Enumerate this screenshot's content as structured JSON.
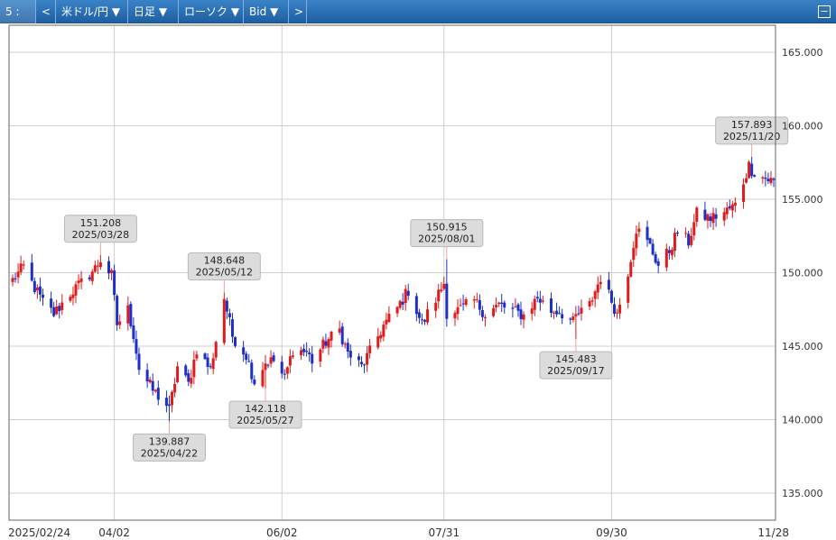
{
  "toolbar": {
    "slot": "5 :",
    "prev": "<",
    "pair": "米ドル/円 ▼",
    "timeframe": "日足 ▼",
    "chart_type": "ローソク ▼",
    "price_side": "Bid ▼",
    "next": ">",
    "collapse": "−"
  },
  "colors": {
    "up": "#e01b1b",
    "down": "#1d2fc8",
    "grid": "#d0d0d0",
    "frame": "#666666"
  },
  "chart_data": {
    "type": "candlestick",
    "title": "",
    "xlabel": "",
    "ylabel": "",
    "ylim": [
      132.5,
      167
    ],
    "yticks": [
      "135.000",
      "140.000",
      "145.000",
      "150.000",
      "155.000",
      "160.000",
      "165.000"
    ],
    "xtick_labels": [
      {
        "label": "2025/02/24",
        "date": "2025-02-24"
      },
      {
        "label": "04/02",
        "date": "2025-04-02"
      },
      {
        "label": "06/02",
        "date": "2025-06-02"
      },
      {
        "label": "07/31",
        "date": "2025-07-31"
      },
      {
        "label": "09/30",
        "date": "2025-09-30"
      },
      {
        "label": "11/28",
        "date": "2025-11-28"
      }
    ],
    "annotations": [
      {
        "price": "151.208",
        "date": "2025/03/28",
        "kind": "high"
      },
      {
        "price": "139.887",
        "date": "2025/04/22",
        "kind": "low"
      },
      {
        "price": "148.648",
        "date": "2025/05/12",
        "kind": "high"
      },
      {
        "price": "142.118",
        "date": "2025/05/27",
        "kind": "low"
      },
      {
        "price": "150.915",
        "date": "2025/08/01",
        "kind": "high"
      },
      {
        "price": "145.483",
        "date": "2025/09/17",
        "kind": "low"
      },
      {
        "price": "157.893",
        "date": "2025/11/20",
        "kind": "high"
      }
    ],
    "anchors": [
      [
        "2025-02-24",
        149.5
      ],
      [
        "2025-02-28",
        150.4
      ],
      [
        "2025-03-03",
        149.3
      ],
      [
        "2025-03-07",
        148.0
      ],
      [
        "2025-03-11",
        147.2
      ],
      [
        "2025-03-17",
        148.6
      ],
      [
        "2025-03-21",
        149.3
      ],
      [
        "2025-03-26",
        150.3
      ],
      [
        "2025-03-28",
        150.9
      ],
      [
        "2025-04-01",
        149.8
      ],
      [
        "2025-04-03",
        146.5
      ],
      [
        "2025-04-07",
        147.5
      ],
      [
        "2025-04-09",
        145.8
      ],
      [
        "2025-04-11",
        143.5
      ],
      [
        "2025-04-16",
        142.0
      ],
      [
        "2025-04-21",
        141.0
      ],
      [
        "2025-04-22",
        140.6
      ],
      [
        "2025-04-25",
        143.6
      ],
      [
        "2025-04-29",
        142.4
      ],
      [
        "2025-05-02",
        144.8
      ],
      [
        "2025-05-07",
        143.4
      ],
      [
        "2025-05-09",
        145.4
      ],
      [
        "2025-05-12",
        148.3
      ],
      [
        "2025-05-15",
        145.7
      ],
      [
        "2025-05-20",
        144.4
      ],
      [
        "2025-05-23",
        142.6
      ],
      [
        "2025-05-27",
        143.9
      ],
      [
        "2025-05-30",
        144.0
      ],
      [
        "2025-06-03",
        142.8
      ],
      [
        "2025-06-06",
        144.8
      ],
      [
        "2025-06-11",
        144.6
      ],
      [
        "2025-06-13",
        144.0
      ],
      [
        "2025-06-18",
        145.3
      ],
      [
        "2025-06-23",
        146.1
      ],
      [
        "2025-06-26",
        144.5
      ],
      [
        "2025-07-01",
        143.6
      ],
      [
        "2025-07-04",
        144.6
      ],
      [
        "2025-07-09",
        146.4
      ],
      [
        "2025-07-14",
        147.6
      ],
      [
        "2025-07-18",
        148.8
      ],
      [
        "2025-07-23",
        146.5
      ],
      [
        "2025-07-28",
        148.2
      ],
      [
        "2025-07-31",
        149.3
      ],
      [
        "2025-08-01",
        147.3
      ],
      [
        "2025-08-06",
        147.5
      ],
      [
        "2025-08-11",
        148.1
      ],
      [
        "2025-08-15",
        147.2
      ],
      [
        "2025-08-20",
        147.8
      ],
      [
        "2025-08-25",
        147.4
      ],
      [
        "2025-08-29",
        147.1
      ],
      [
        "2025-09-03",
        148.3
      ],
      [
        "2025-09-08",
        147.4
      ],
      [
        "2025-09-11",
        147.4
      ],
      [
        "2025-09-16",
        146.6
      ],
      [
        "2025-09-17",
        147.0
      ],
      [
        "2025-09-22",
        147.8
      ],
      [
        "2025-09-26",
        149.7
      ],
      [
        "2025-09-30",
        148.1
      ],
      [
        "2025-10-02",
        147.2
      ],
      [
        "2025-10-06",
        150.1
      ],
      [
        "2025-10-09",
        153.0
      ],
      [
        "2025-10-14",
        151.8
      ],
      [
        "2025-10-17",
        150.5
      ],
      [
        "2025-10-21",
        151.5
      ],
      [
        "2025-10-24",
        152.8
      ],
      [
        "2025-10-28",
        152.1
      ],
      [
        "2025-10-31",
        154.0
      ],
      [
        "2025-11-05",
        153.7
      ],
      [
        "2025-11-10",
        154.1
      ],
      [
        "2025-11-14",
        154.6
      ],
      [
        "2025-11-19",
        157.3
      ],
      [
        "2025-11-20",
        157.0
      ],
      [
        "2025-11-24",
        156.5
      ],
      [
        "2025-11-28",
        156.2
      ]
    ]
  }
}
